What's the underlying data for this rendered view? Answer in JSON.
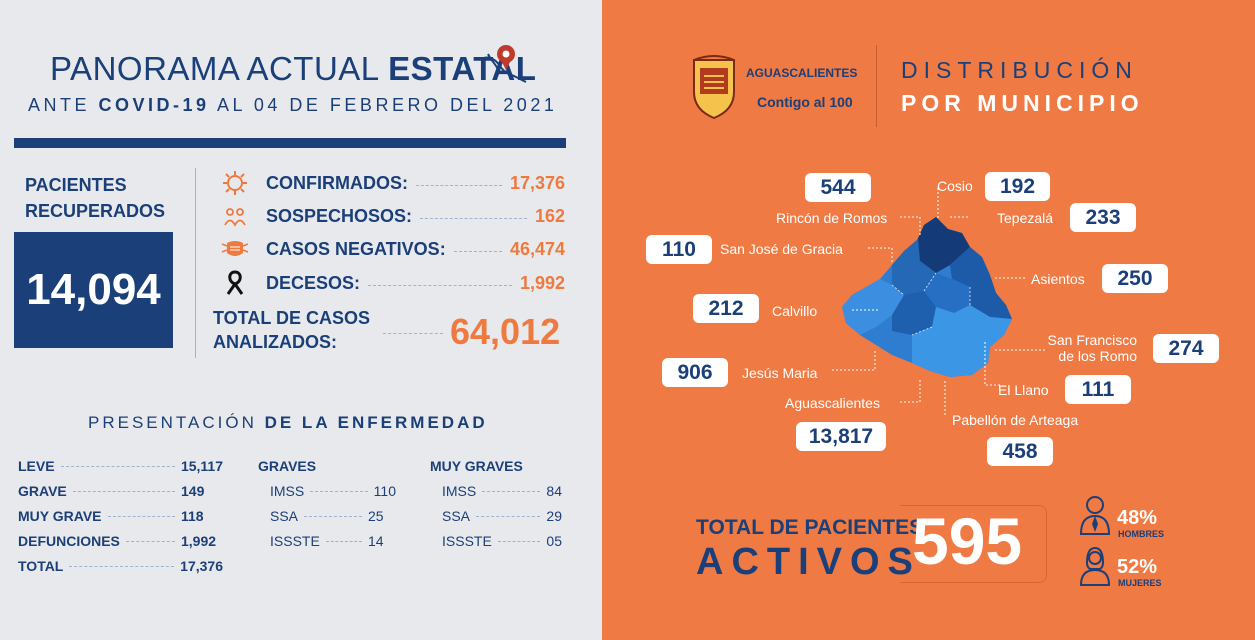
{
  "header": {
    "title_part1": "PANORAMA ACTUAL ",
    "title_part2": "ESTATAL",
    "subtitle_part1": "ANTE ",
    "subtitle_part2": "COVID-19",
    "subtitle_part3": " AL 04 DE FEBRERO DEL 2021"
  },
  "recovered": {
    "label_line1": "PACIENTES",
    "label_line2": "RECUPERADOS",
    "value": "14,094"
  },
  "stats": [
    {
      "label": "CONFIRMADOS:",
      "value": "17,376",
      "icon": "virus-icon"
    },
    {
      "label": "SOSPECHOSOS:",
      "value": "162",
      "icon": "people-question-icon"
    },
    {
      "label": "CASOS NEGATIVOS:",
      "value": "46,474",
      "icon": "mask-icon"
    },
    {
      "label": "DECESOS:",
      "value": "1,992",
      "icon": "ribbon-icon"
    }
  ],
  "total": {
    "label_line1": "TOTAL DE CASOS",
    "label_line2": "ANALIZADOS:",
    "value": "64,012"
  },
  "presentation": {
    "title_part1": "PRESENTACIÓN ",
    "title_part2": "DE LA ENFERMEDAD",
    "severity": [
      {
        "label": "LEVE",
        "value": "15,117"
      },
      {
        "label": "GRAVE",
        "value": "149"
      },
      {
        "label": "MUY GRAVE",
        "value": "118"
      },
      {
        "label": "DEFUNCIONES",
        "value": "1,992"
      },
      {
        "label": "TOTAL",
        "value": "17,376"
      }
    ],
    "graves": {
      "title": "GRAVES",
      "rows": [
        {
          "label": "IMSS",
          "value": "110"
        },
        {
          "label": "SSA",
          "value": "25"
        },
        {
          "label": "ISSSTE",
          "value": "14"
        }
      ]
    },
    "muy_graves": {
      "title": "MUY GRAVES",
      "rows": [
        {
          "label": "IMSS",
          "value": "84"
        },
        {
          "label": "SSA",
          "value": "29"
        },
        {
          "label": "ISSSTE",
          "value": "05"
        }
      ]
    }
  },
  "logo": {
    "name": "AGUASCALIENTES",
    "tagline": "Contigo al 100"
  },
  "distribution": {
    "title_line1": "DISTRIBUCIÓN",
    "title_line2": "POR MUNICIPIO",
    "municipalities": [
      {
        "name": "Rincón de Romos",
        "value": "544"
      },
      {
        "name": "Cosio",
        "value": "192"
      },
      {
        "name": "Tepezalá",
        "value": "233"
      },
      {
        "name": "San José de Gracia",
        "value": "110"
      },
      {
        "name": "Asientos",
        "value": "250"
      },
      {
        "name": "Calvillo",
        "value": "212"
      },
      {
        "name": "San Francisco",
        "name2": "de los Romo",
        "value": "274"
      },
      {
        "name": "Jesús Maria",
        "value": "906"
      },
      {
        "name": "El Llano",
        "value": "111"
      },
      {
        "name": "Aguascalientes",
        "value": "13,817"
      },
      {
        "name": "Pabellón de Arteaga",
        "value": "458"
      }
    ]
  },
  "active": {
    "label_line1": "TOTAL DE PACIENTES",
    "label_line2": "ACTIVOS",
    "value": "595",
    "men_pct": "48%",
    "men_label": "HOMBRES",
    "women_pct": "52%",
    "women_label": "MUJERES"
  },
  "colors": {
    "navy": "#1b3f78",
    "orange": "#ee7a3f",
    "right_bg": "#ef7a44",
    "left_bg": "#e8e9ec"
  }
}
